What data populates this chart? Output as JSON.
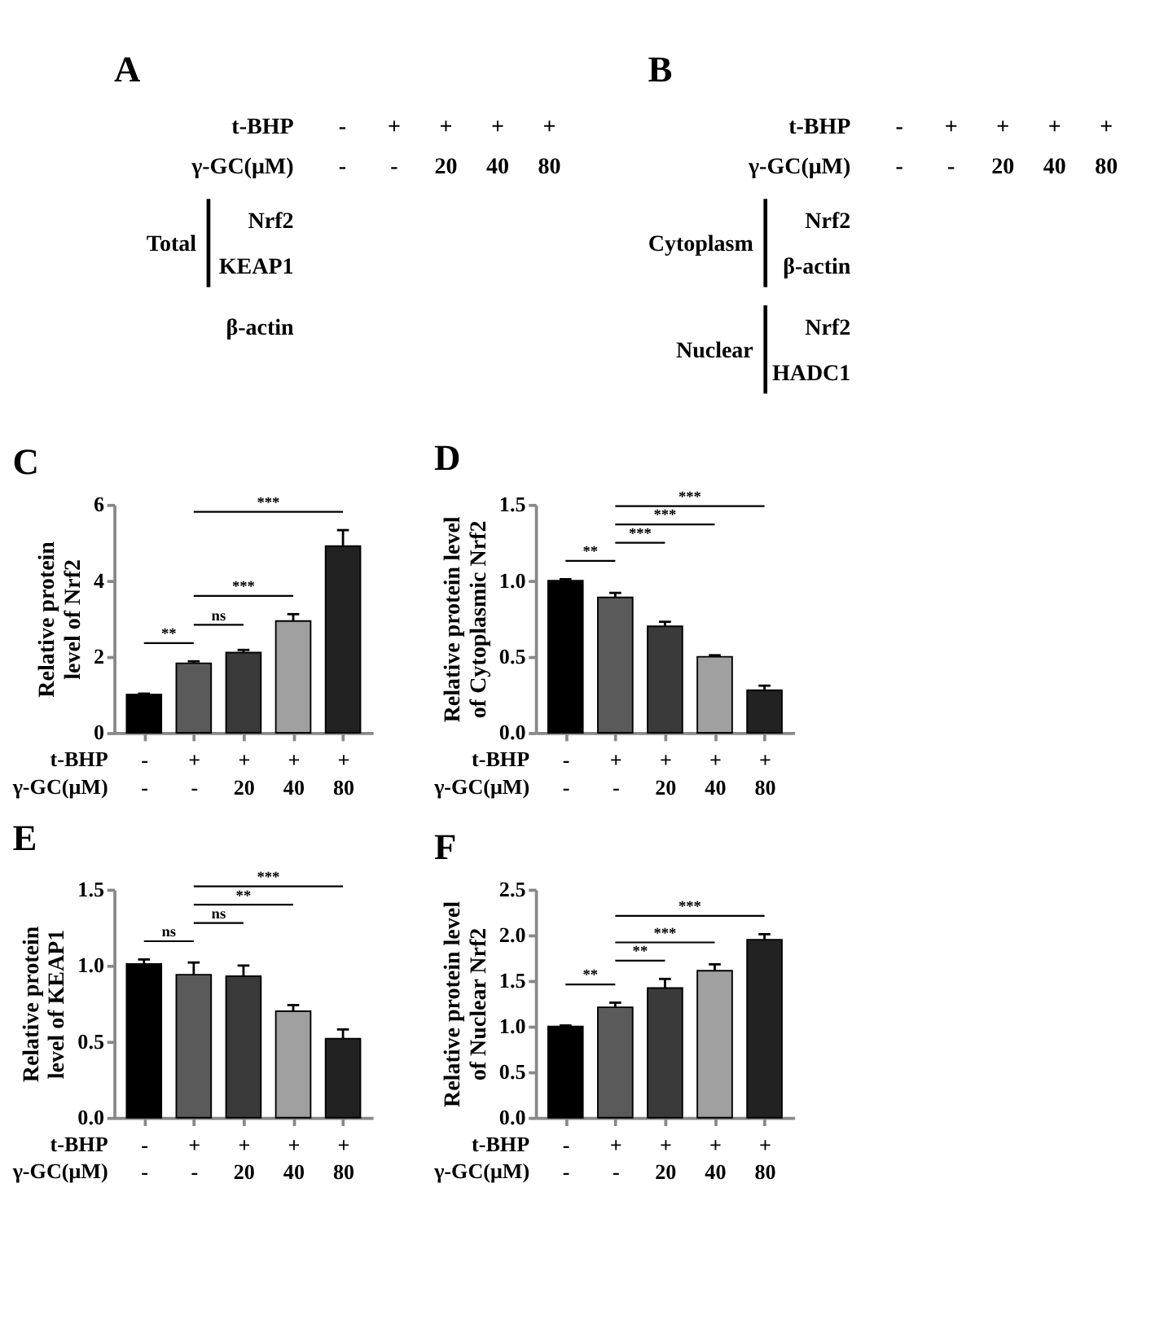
{
  "chart_data": [
    {
      "type": "other",
      "title": "A",
      "y_categories": [
        "t-BHP",
        "γ-GC(μM)",
        "Nrf2",
        "KEAP1",
        "β-actin"
      ],
      "cell_labels": [
        [
          "-",
          "+",
          "+",
          "+",
          "+"
        ],
        [
          "-",
          "-",
          "20",
          "40",
          "80"
        ]
      ],
      "annotations": [
        "Total"
      ]
    },
    {
      "type": "other",
      "title": "B",
      "y_categories": [
        "t-BHP",
        "γ-GC(μM)",
        "Nrf2",
        "β-actin",
        "Nrf2",
        "HADC1"
      ],
      "cell_labels": [
        [
          "-",
          "+",
          "+",
          "+",
          "+"
        ],
        [
          "-",
          "-",
          "20",
          "40",
          "80"
        ]
      ],
      "annotations": [
        "Cytoplasm",
        "Nuclear"
      ]
    },
    {
      "type": "bar",
      "title": "C",
      "ylabel": "Relative protein\nlevel of Nrf2",
      "xlabel": "t-BHP\nγ-GC(μM)",
      "categories": [
        "-\n-",
        "+\n-",
        "+\n20",
        "+\n40",
        "+\n80"
      ],
      "values": [
        1.01,
        1.83,
        2.11,
        2.94,
        4.91
      ],
      "colors": [
        "#000000",
        "#5a5a5a",
        "#3a3a3a",
        "#a0a0a0",
        "#222222"
      ],
      "errors": [
        [
          1.01,
          1.03
        ],
        [
          1.83,
          1.88
        ],
        [
          2.11,
          2.18
        ],
        [
          2.94,
          3.12
        ],
        [
          4.91,
          5.33
        ]
      ],
      "ylim": [
        0,
        6
      ],
      "yticks": [
        0,
        2,
        4,
        6
      ],
      "annotations": [
        "**",
        "ns",
        "***",
        "***"
      ]
    },
    {
      "type": "bar",
      "title": "D",
      "ylabel": "Relative protein level\nof Cytoplasmic Nrf2",
      "xlabel": "t-BHP\nγ-GC(μM)",
      "categories": [
        "-\n-",
        "+\n-",
        "+\n20",
        "+\n40",
        "+\n80"
      ],
      "values": [
        1.0,
        0.89,
        0.7,
        0.5,
        0.28
      ],
      "colors": [
        "#000000",
        "#5a5a5a",
        "#3a3a3a",
        "#a0a0a0",
        "#222222"
      ],
      "errors": [
        [
          1.0,
          1.01
        ],
        [
          0.89,
          0.92
        ],
        [
          0.7,
          0.73
        ],
        [
          0.5,
          0.51
        ],
        [
          0.28,
          0.31
        ]
      ],
      "ylim": [
        0,
        1.5
      ],
      "yticks": [
        {
          "value": 0,
          "label": "0.0"
        },
        {
          "value": 0.5,
          "label": "0.5"
        },
        {
          "value": 1,
          "label": "1.0"
        },
        {
          "value": 1.5,
          "label": "1.5"
        }
      ],
      "annotations": [
        "**",
        "***",
        "***",
        "***"
      ]
    },
    {
      "type": "bar",
      "title": "E",
      "ylabel": "Relative protein\nlevel of KEAP1",
      "xlabel": "t-BHP\nγ-GC(μM)",
      "categories": [
        "-\n-",
        "+\n-",
        "+\n20",
        "+\n40",
        "+\n80"
      ],
      "values": [
        1.01,
        0.94,
        0.93,
        0.7,
        0.52
      ],
      "colors": [
        "#000000",
        "#5a5a5a",
        "#3a3a3a",
        "#a0a0a0",
        "#222222"
      ],
      "errors": [
        [
          1.01,
          1.04
        ],
        [
          0.94,
          1.02
        ],
        [
          0.93,
          1.0
        ],
        [
          0.7,
          0.74
        ],
        [
          0.52,
          0.58
        ]
      ],
      "ylim": [
        0,
        1.5
      ],
      "yticks": [
        {
          "value": 0,
          "label": "0.0"
        },
        {
          "value": 0.5,
          "label": "0.5"
        },
        {
          "value": 1,
          "label": "1.0"
        },
        {
          "value": 1.5,
          "label": "1.5"
        }
      ],
      "annotations": [
        "ns",
        "ns",
        "**",
        "***"
      ]
    },
    {
      "type": "bar",
      "title": "F",
      "ylabel": "Relative protein level\nof Nuclear Nrf2",
      "xlabel": "t-BHP\nγ-GC(μM)",
      "categories": [
        "-\n-",
        "+\n-",
        "+\n20",
        "+\n40",
        "+\n80"
      ],
      "values": [
        1.0,
        1.21,
        1.42,
        1.61,
        1.95
      ],
      "colors": [
        "#000000",
        "#5a5a5a",
        "#3a3a3a",
        "#a0a0a0",
        "#222222"
      ],
      "errors": [
        [
          1.0,
          1.01
        ],
        [
          1.21,
          1.26
        ],
        [
          1.42,
          1.52
        ],
        [
          1.61,
          1.68
        ],
        [
          1.95,
          2.01
        ]
      ],
      "ylim": [
        0,
        2.5
      ],
      "yticks": [
        {
          "value": 0,
          "label": "0.0"
        },
        {
          "value": 0.5,
          "label": "0.5"
        },
        {
          "value": 1,
          "label": "1.0"
        },
        {
          "value": 1.5,
          "label": "1.5"
        },
        {
          "value": 2,
          "label": "2.0"
        },
        {
          "value": 2.5,
          "label": "2.5"
        }
      ],
      "annotations": [
        "**",
        "**",
        "***",
        "***"
      ]
    }
  ]
}
